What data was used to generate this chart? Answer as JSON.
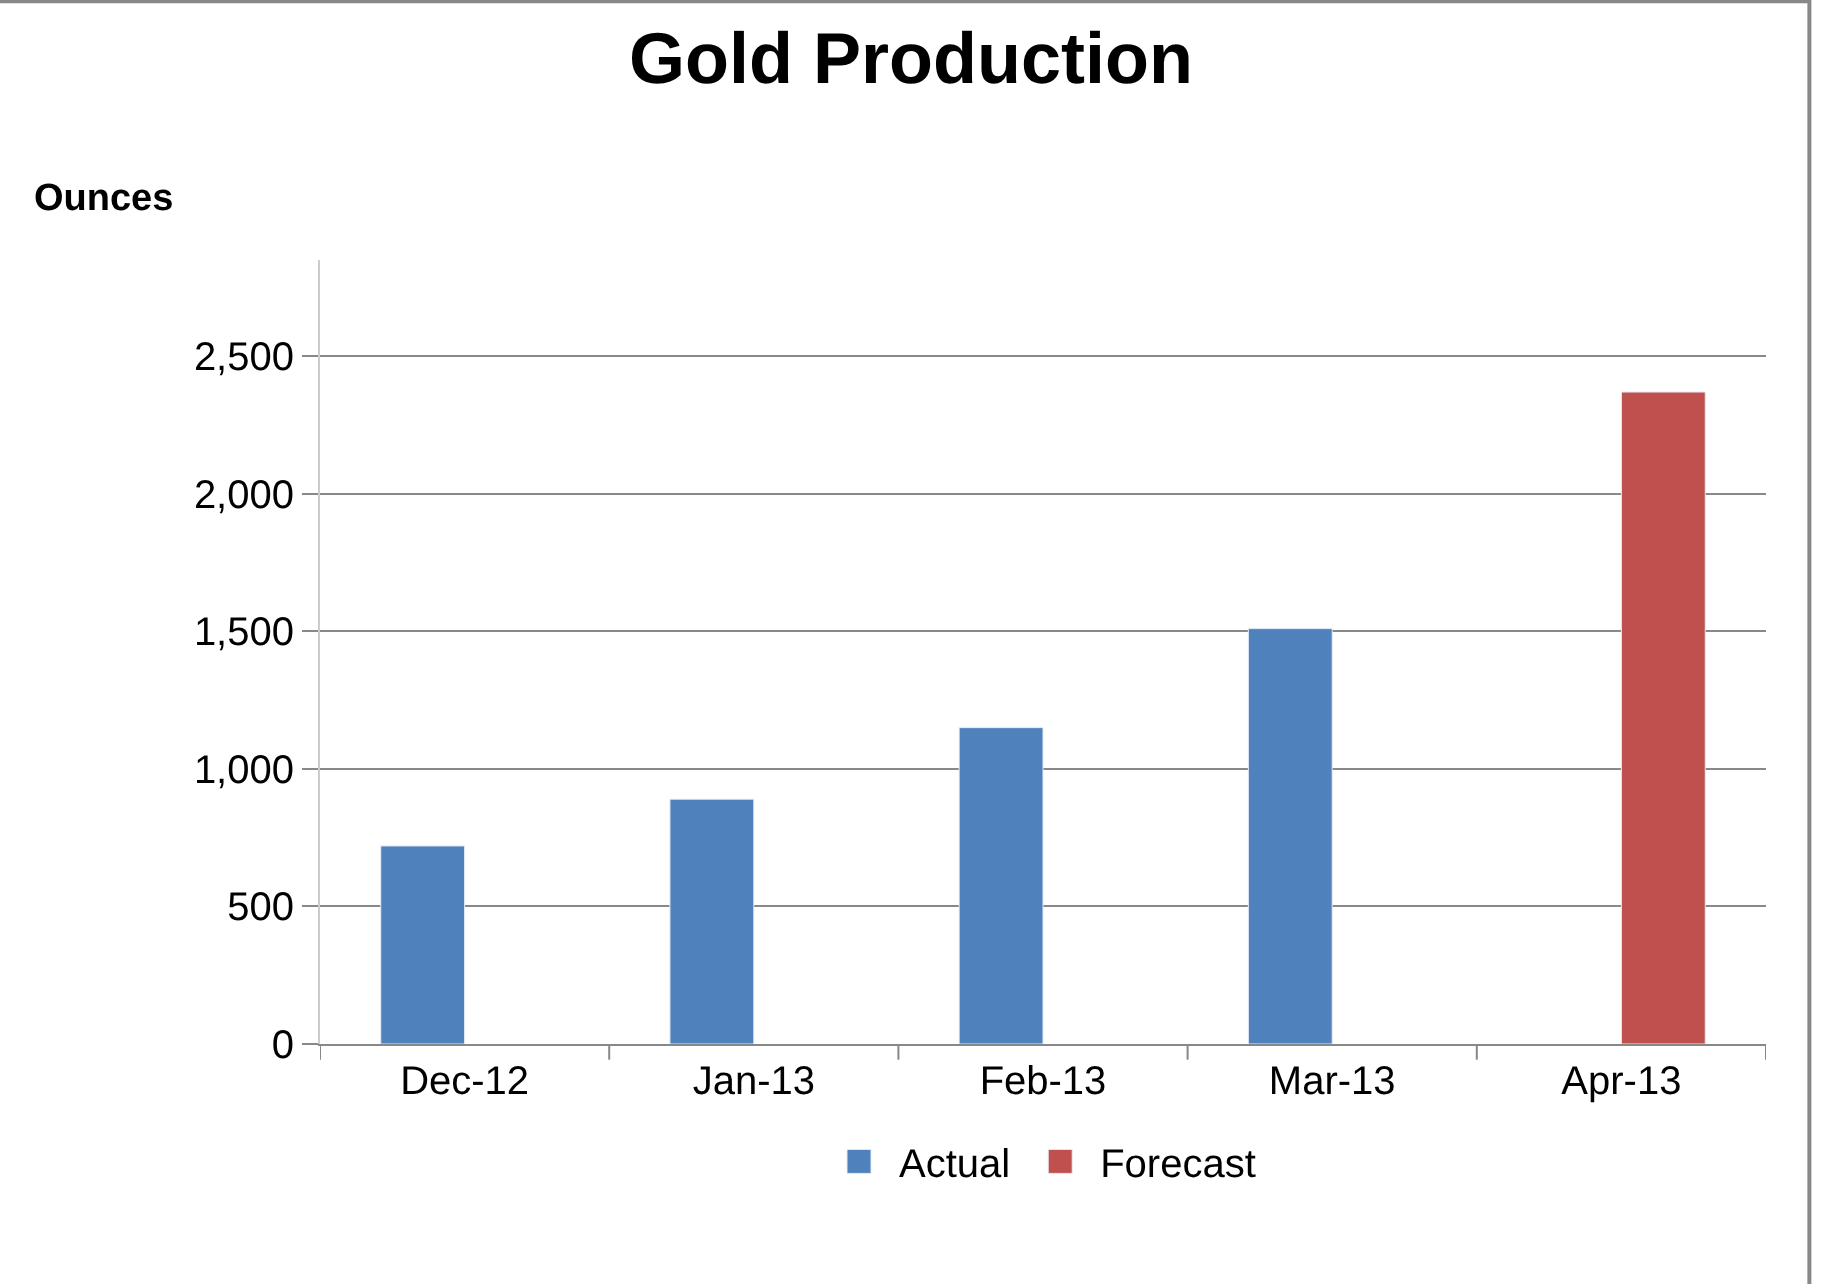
{
  "chart_data": {
    "type": "bar",
    "title": "Gold Production",
    "ylabel": "Ounces",
    "categories": [
      "Dec-12",
      "Jan-13",
      "Feb-13",
      "Mar-13",
      "Apr-13"
    ],
    "series": [
      {
        "name": "Actual",
        "color": "#4f81bd",
        "values": [
          720,
          890,
          1150,
          1510,
          null
        ]
      },
      {
        "name": "Forecast",
        "color": "#c0504d",
        "values": [
          null,
          null,
          null,
          null,
          2370
        ]
      }
    ],
    "ylim": [
      0,
      2850
    ],
    "yticks": [
      {
        "value": 0,
        "label": "0"
      },
      {
        "value": 500,
        "label": "500"
      },
      {
        "value": 1000,
        "label": "1,000"
      },
      {
        "value": 1500,
        "label": "1,500"
      },
      {
        "value": 2000,
        "label": "2,000"
      },
      {
        "value": 2500,
        "label": "2,500"
      }
    ],
    "grid": "y",
    "legend": "bottom"
  }
}
